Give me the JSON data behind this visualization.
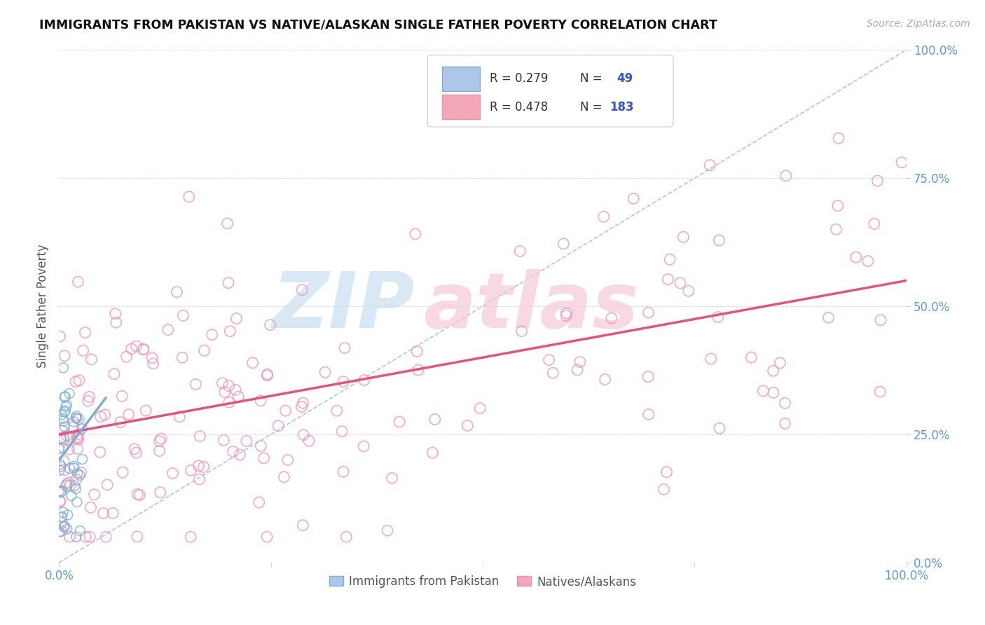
{
  "title": "IMMIGRANTS FROM PAKISTAN VS NATIVE/ALASKAN SINGLE FATHER POVERTY CORRELATION CHART",
  "source": "Source: ZipAtlas.com",
  "ylabel": "Single Father Poverty",
  "xlim": [
    0,
    1
  ],
  "ylim": [
    0,
    1
  ],
  "xtick_positions": [
    0.0,
    1.0
  ],
  "xtick_labels": [
    "0.0%",
    "100.0%"
  ],
  "ytick_positions": [
    0.0,
    0.25,
    0.5,
    0.75,
    1.0
  ],
  "ytick_labels": [
    "0.0%",
    "25.0%",
    "50.0%",
    "75.0%",
    "100.0%"
  ],
  "blue_color": "#7aaed6",
  "pink_color": "#f48fb1",
  "blue_line_color": "#7aaed6",
  "pink_line_color": "#e8527a",
  "dashed_line_color": "#aac8e8",
  "watermark_zip_color": "#c8dff0",
  "watermark_atlas_color": "#f5c8d8",
  "background_color": "#ffffff",
  "grid_color": "#dddddd",
  "title_color": "#111111",
  "axis_tick_color": "#5b9bd5",
  "ylabel_color": "#555555",
  "source_color": "#aaaaaa",
  "legend_box_color": "#aec6e8",
  "legend_pink_color": "#f4a7b9",
  "legend_border_color": "#cccccc",
  "bottom_legend_color": "#555555",
  "pink_trend_intercept": 0.25,
  "pink_trend_slope": 0.3,
  "blue_trend_intercept": 0.2,
  "blue_trend_slope": 2.2,
  "blue_trend_x_end": 0.055
}
